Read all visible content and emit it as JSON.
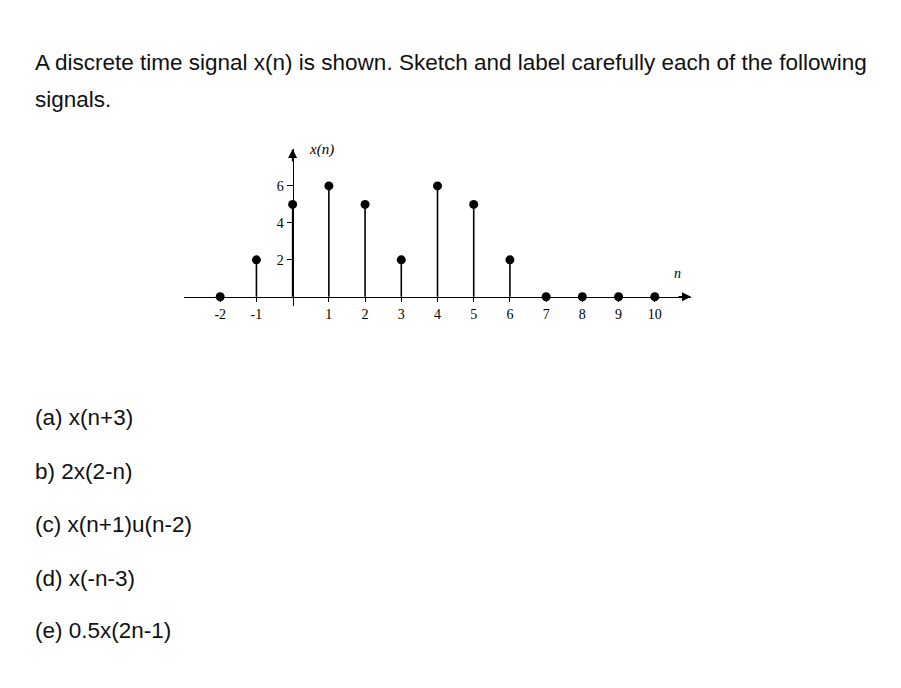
{
  "document": {
    "question": "A discrete time signal x(n) is shown. Sketch and label carefully each of the following signals.",
    "parts": [
      "(a) x(n+3)",
      "b) 2x(2-n)",
      "(c) x(n+1)u(n-2)",
      "(d) x(-n-3)",
      "(e) 0.5x(2n-1)"
    ]
  },
  "chart_data": {
    "type": "stem",
    "y_label": "x(n)",
    "x_label": "n",
    "x": [
      -2,
      -1,
      0,
      1,
      2,
      3,
      4,
      5,
      6,
      7,
      8,
      9,
      10
    ],
    "values": [
      0,
      2,
      5,
      6,
      5,
      2,
      6,
      5,
      2,
      0,
      0,
      0,
      0
    ],
    "color": "#000000",
    "xlim": [
      -3,
      11
    ],
    "ylim": [
      -0.5,
      8
    ],
    "xticks": [
      -2,
      -1,
      1,
      2,
      3,
      4,
      5,
      6,
      7,
      8,
      9,
      10
    ],
    "yticks": [
      2,
      4,
      6
    ],
    "grid": false
  }
}
